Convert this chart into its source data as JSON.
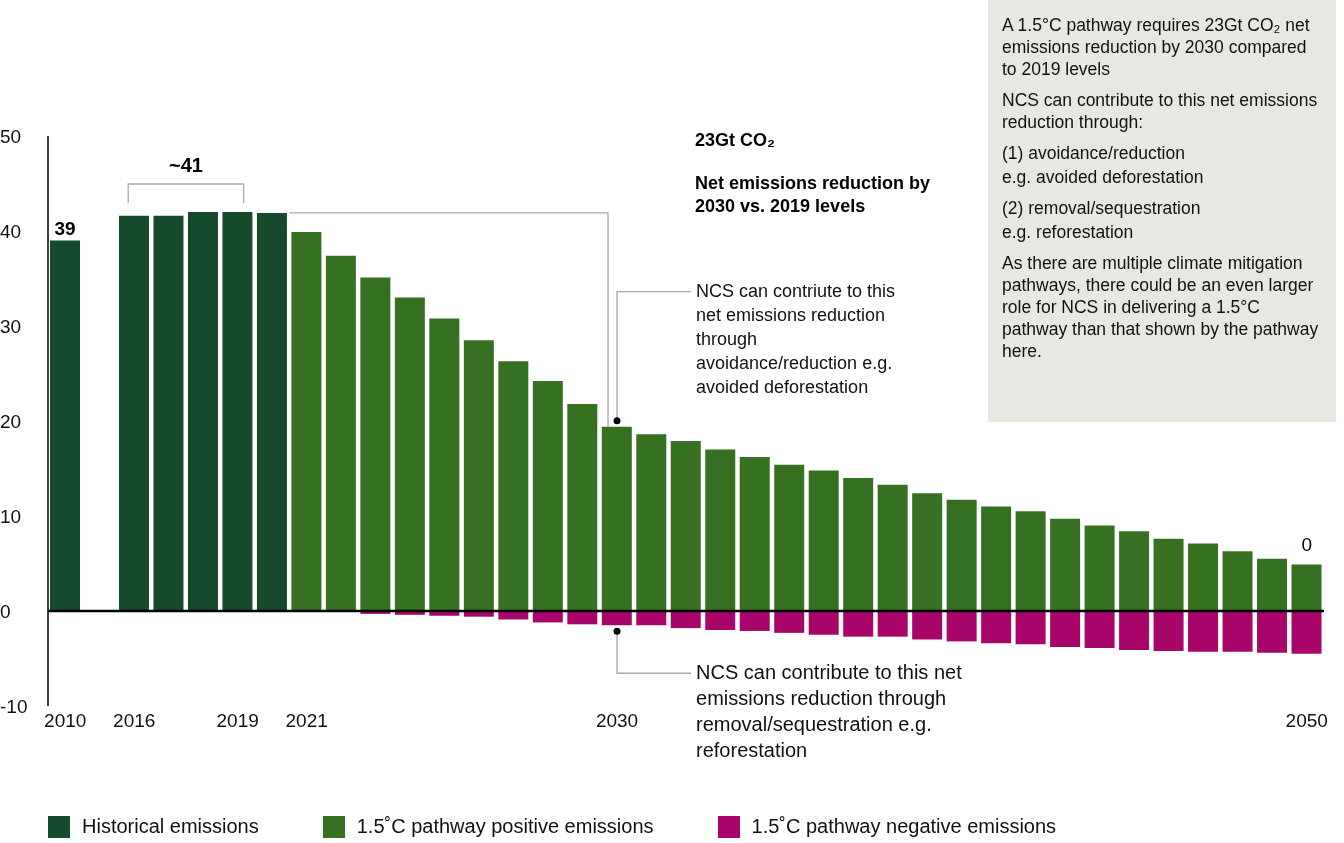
{
  "chart_data": {
    "type": "bar",
    "stacked": true,
    "categories": [
      "2010",
      null,
      "2016",
      null,
      null,
      "2019",
      null,
      "2021",
      null,
      null,
      null,
      null,
      null,
      null,
      null,
      null,
      "2030",
      null,
      null,
      null,
      null,
      null,
      null,
      null,
      null,
      null,
      null,
      null,
      null,
      null,
      null,
      null,
      null,
      null,
      null,
      null,
      "2050"
    ],
    "series": [
      {
        "name": "Historical emissions",
        "color": "#164a2c",
        "values": [
          39,
          null,
          41.6,
          41.6,
          42.0,
          42.0,
          41.9,
          null,
          null,
          null,
          null,
          null,
          null,
          null,
          null,
          null,
          null,
          null,
          null,
          null,
          null,
          null,
          null,
          null,
          null,
          null,
          null,
          null,
          null,
          null,
          null,
          null,
          null,
          null,
          null,
          null,
          null
        ],
        "value_labels": [
          "39",
          null,
          null,
          null,
          null,
          null,
          null,
          null,
          null,
          null,
          null,
          null,
          null,
          null,
          null,
          null,
          null,
          null,
          null,
          null,
          null,
          null,
          null,
          null,
          null,
          null,
          null,
          null,
          null,
          null,
          null,
          null,
          null,
          null,
          null,
          null,
          null
        ]
      },
      {
        "name": "1.5˚C pathway positive emissions",
        "color": "#367121",
        "values": [
          null,
          null,
          null,
          null,
          null,
          null,
          null,
          39.9,
          37.4,
          35.1,
          33.0,
          30.8,
          28.5,
          26.3,
          24.2,
          21.8,
          19.4,
          18.6,
          17.9,
          17.0,
          16.2,
          15.4,
          14.8,
          14.0,
          13.3,
          12.4,
          11.7,
          11.0,
          10.5,
          9.7,
          9.0,
          8.4,
          7.6,
          7.1,
          6.3,
          5.5,
          4.9
        ]
      },
      {
        "name": "1.5˚C pathway negative emissions",
        "color": "#a8056b",
        "values": [
          null,
          null,
          null,
          null,
          null,
          null,
          null,
          null,
          null,
          -0.3,
          -0.4,
          -0.5,
          -0.6,
          -0.9,
          -1.2,
          -1.4,
          -1.5,
          -1.5,
          -1.8,
          -2.0,
          -2.1,
          -2.3,
          -2.5,
          -2.7,
          -2.7,
          -3.0,
          -3.2,
          -3.4,
          -3.5,
          -3.8,
          -3.9,
          -4.1,
          -4.2,
          -4.3,
          -4.3,
          -4.4,
          -4.5
        ]
      }
    ],
    "ylim": [
      -10,
      50
    ],
    "yticks": [
      -10,
      0,
      10,
      20,
      30,
      40,
      50
    ],
    "grid": false,
    "legend": "bottom",
    "ref_lines": [
      {
        "axis": "y",
        "value": 0,
        "color": "#000000"
      }
    ],
    "annotations": [
      "~41",
      "23Gt CO₂",
      "Net emissions reduction by 2030 vs. 2019 levels",
      {
        "text": "NCS can contriute to this net emissions reduction through avoidance/reduction e.g. avoided deforestation",
        "x": "2030",
        "y": 19.4
      },
      {
        "text": "NCS can contribute to this net emissions reduction through removal/sequestration e.g. reforestation",
        "x": "2030",
        "y": -1.5
      },
      {
        "text": "0",
        "x": "2050",
        "y": 4.9
      },
      "A 1.5°C pathway requires 23Gt CO₂ net emissions reduction by 2030 compared to 2019 levels",
      "NCS can contribute to this net emissions reduction through:",
      "(1) avoidance/reduction",
      "e.g. avoided deforestation",
      "(2) removal/sequestration",
      "e.g. reforestation",
      "As there are multiple climate mitigation pathways, there could be an even larger role for NCS in delivering a 1.5°C pathway than that shown by the pathway here."
    ]
  }
}
